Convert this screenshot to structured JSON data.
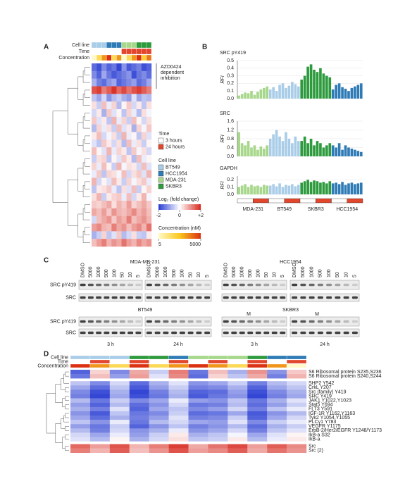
{
  "panel_a": {
    "label": "A",
    "strip_labels": [
      "Cell line",
      "Time",
      "Concentration"
    ],
    "columns": {
      "cell_line": [
        "BT549",
        "BT549",
        "BT549",
        "HCC1954",
        "HCC1954",
        "HCC1954",
        "MDA-231",
        "MDA-231",
        "MDA-231",
        "SKBR3",
        "SKBR3",
        "SKBR3"
      ],
      "time": [
        "3 hours",
        "3 hours",
        "3 hours",
        "3 hours",
        "3 hours",
        "3 hours",
        "24 hours",
        "24 hours",
        "24 hours",
        "24 hours",
        "24 hours",
        "24 hours"
      ],
      "concentration": [
        5,
        50,
        500,
        5000,
        50,
        500,
        5,
        50,
        500,
        5000,
        100,
        1000
      ]
    },
    "annotation": [
      "AZD0424",
      "dependent",
      "inhibition"
    ],
    "time_legend": {
      "title": "Time",
      "entries": [
        {
          "name": "3 hours",
          "color": "#ffffff"
        },
        {
          "name": "24 hours",
          "color": "#e2462c"
        }
      ]
    },
    "cell_line_legend": {
      "title": "Cell line",
      "entries": [
        {
          "name": "BT549",
          "color": "#a9cde8"
        },
        {
          "name": "HCC1954",
          "color": "#2e7bb6"
        },
        {
          "name": "MDA-231",
          "color": "#a6d78a"
        },
        {
          "name": "SKBR3",
          "color": "#2e9a3e"
        }
      ]
    },
    "fold_legend": {
      "title": "Log₂ (fold change)",
      "range": [
        -2,
        2
      ],
      "ticks": [
        -2,
        0,
        {
          "value": 2,
          "label": "+2"
        }
      ]
    },
    "conc_legend": {
      "title": "Concentration (nM)",
      "range": [
        5,
        5000
      ],
      "log": true,
      "ticks": [
        5,
        5000
      ]
    },
    "heatmap": [
      [
        -1.5,
        -1.8,
        -1.2,
        -1.6,
        -1.4,
        -1.9,
        -1.1,
        -1.7,
        -1.5,
        -1.3,
        -1.8,
        -1.6
      ],
      [
        -1.2,
        -1.6,
        -0.9,
        -1.4,
        -1.7,
        -1.5,
        -1.3,
        -1.1,
        -1.8,
        -1.4,
        -1.2,
        -1.5
      ],
      [
        -0.8,
        -1.3,
        -1.5,
        -1.1,
        -0.9,
        -1.6,
        -1.4,
        -1.2,
        -1.0,
        -1.5,
        -1.3,
        -0.9
      ],
      [
        1.6,
        1.8,
        1.2,
        1.5,
        1.9,
        1.4,
        1.7,
        1.3,
        1.6,
        1.8,
        1.5,
        1.2
      ],
      [
        -0.6,
        -0.9,
        -0.4,
        -1.1,
        -0.7,
        -0.5,
        -0.8,
        -1.0,
        -0.3,
        -0.9,
        -0.6,
        -0.7
      ],
      [
        0.3,
        -0.5,
        0.6,
        -0.2,
        0.4,
        -0.7,
        0.1,
        0.5,
        -0.4,
        0.2,
        -0.6,
        0.3
      ],
      [
        -0.4,
        0.2,
        -0.8,
        0.5,
        -0.3,
        0.1,
        -0.6,
        0.4,
        -0.2,
        -0.7,
        0.3,
        -0.1
      ],
      [
        0.5,
        -0.3,
        0.2,
        -0.6,
        0.7,
        -0.2,
        0.4,
        -0.5,
        0.6,
        0.1,
        -0.4,
        0.3
      ],
      [
        -0.7,
        0.4,
        -0.2,
        0.3,
        -0.5,
        0.6,
        -0.3,
        0.2,
        -0.8,
        0.4,
        -0.1,
        0.5
      ],
      [
        0.2,
        0.6,
        -0.4,
        -0.1,
        0.3,
        -0.5,
        0.7,
        -0.2,
        0.1,
        -0.6,
        0.4,
        -0.3
      ],
      [
        -0.3,
        -0.6,
        0.5,
        0.2,
        -0.4,
        0.3,
        -0.7,
        0.6,
        -0.2,
        0.3,
        -0.5,
        0.1
      ],
      [
        0.6,
        0.1,
        -0.3,
        0.7,
        -0.2,
        0.4,
        0.2,
        -0.6,
        0.5,
        -0.1,
        0.3,
        -0.4
      ],
      [
        -0.5,
        0.3,
        0.4,
        -0.6,
        0.1,
        -0.3,
        0.5,
        0.2,
        -0.7,
        0.6,
        -0.2,
        0.1
      ],
      [
        0.4,
        -0.2,
        0.6,
        0.1,
        -0.5,
        0.7,
        -0.1,
        0.3,
        0.2,
        -0.4,
        0.6,
        -0.3
      ],
      [
        -0.2,
        0.5,
        -0.6,
        0.4,
        0.3,
        -0.1,
        0.6,
        -0.4,
        0.3,
        0.5,
        -0.3,
        0.7
      ],
      [
        0.7,
        -0.4,
        0.1,
        -0.3,
        0.6,
        0.2,
        -0.5,
        0.4,
        -0.1,
        0.3,
        0.5,
        -0.2
      ],
      [
        -0.6,
        0.2,
        0.3,
        0.5,
        -0.2,
        -0.6,
        0.3,
        -0.3,
        0.6,
        -0.5,
        0.1,
        0.4
      ],
      [
        0.3,
        0.7,
        -0.5,
        0.2,
        0.4,
        0.5,
        -0.2,
        0.6,
        -0.4,
        0.2,
        0.7,
        -0.1
      ],
      [
        0.5,
        0.4,
        0.6,
        0.8,
        0.3,
        0.7,
        0.5,
        0.9,
        0.4,
        0.6,
        0.8,
        0.5
      ],
      [
        0.8,
        0.6,
        0.9,
        0.5,
        1.0,
        0.7,
        0.6,
        0.8,
        1.1,
        0.7,
        0.9,
        0.6
      ],
      [
        -0.4,
        0.6,
        0.8,
        1.0,
        0.5,
        0.9,
        0.7,
        1.2,
        0.6,
        0.8,
        1.0,
        0.7
      ],
      [
        0.9,
        1.1,
        0.7,
        0.6,
        1.2,
        0.8,
        1.0,
        0.6,
        0.9,
        1.1,
        0.7,
        1.3
      ],
      [
        -0.8,
        -0.5,
        0.4,
        -0.6,
        -0.3,
        0.5,
        -0.7,
        -0.4,
        0.3,
        -0.5,
        -0.6,
        0.2
      ],
      [
        0.6,
        0.9,
        1.2,
        0.7,
        1.0,
        0.8,
        1.3,
        0.9,
        0.7,
        1.1,
        0.8,
        1.0
      ]
    ]
  },
  "panel_b": {
    "label": "B",
    "groups": [
      "MDA-231",
      "BT549",
      "SKBR3",
      "HCC1954"
    ],
    "group_colors": [
      "#a6d78a",
      "#a9cde8",
      "#2e9a3e",
      "#2e7bb6"
    ],
    "charts": [
      {
        "type": "bar",
        "title": "SRC pY419",
        "ylabel": "RFI",
        "ylim": [
          0,
          0.5
        ],
        "yticks": [
          {
            "value": 0,
            "label": "0.0"
          },
          0.1,
          0.2,
          0.3,
          0.4,
          0.5
        ],
        "values": [
          [
            0.04,
            0.06,
            0.08,
            0.07,
            0.1,
            0.05,
            0.09,
            0.12,
            0.14,
            0.16
          ],
          [
            0.12,
            0.15,
            0.1,
            0.18,
            0.2,
            0.14,
            0.17,
            0.22,
            0.19,
            0.16
          ],
          [
            0.25,
            0.3,
            0.42,
            0.45,
            0.38,
            0.35,
            0.4,
            0.33,
            0.3,
            0.28
          ],
          [
            0.12,
            0.18,
            0.2,
            0.15,
            0.13,
            0.1,
            0.14,
            0.16,
            0.18,
            0.2
          ]
        ]
      },
      {
        "type": "bar",
        "title": "SRC",
        "ylabel": "RFI",
        "ylim": [
          0,
          1.6
        ],
        "yticks": [
          {
            "value": 0,
            "label": "0.0"
          },
          0.4,
          0.8,
          1.2,
          1.6
        ],
        "values": [
          [
            1.1,
            0.6,
            0.5,
            0.7,
            0.4,
            0.5,
            0.3,
            0.45,
            0.35,
            0.5
          ],
          [
            0.8,
            1.0,
            1.2,
            0.9,
            0.7,
            1.1,
            0.8,
            0.6,
            0.9,
            0.7
          ],
          [
            0.7,
            0.9,
            0.6,
            0.8,
            0.5,
            0.7,
            0.6,
            0.4,
            0.5,
            0.6
          ],
          [
            0.5,
            0.4,
            0.6,
            0.3,
            0.5,
            0.4,
            0.35,
            0.3,
            0.25,
            0.2
          ]
        ]
      },
      {
        "type": "bar",
        "title": "GAPDH",
        "ylabel": "RFI",
        "ylim": [
          0,
          0.25
        ],
        "yticks": [
          {
            "value": 0,
            "label": "0.0"
          },
          0.1,
          0.2
        ],
        "values": [
          [
            0.1,
            0.12,
            0.14,
            0.1,
            0.13,
            0.11,
            0.12,
            0.1,
            0.13,
            0.12
          ],
          [
            0.12,
            0.14,
            0.11,
            0.15,
            0.1,
            0.13,
            0.12,
            0.14,
            0.11,
            0.13
          ],
          [
            0.16,
            0.18,
            0.2,
            0.17,
            0.19,
            0.18,
            0.16,
            0.17,
            0.15,
            0.18
          ],
          [
            0.15,
            0.16,
            0.14,
            0.17,
            0.13,
            0.15,
            0.16,
            0.14,
            0.15,
            0.16
          ]
        ]
      }
    ]
  },
  "panel_c": {
    "label": "C",
    "blots": [
      {
        "title": "MDA-MB-231"
      },
      {
        "title": "HCC1954"
      },
      {
        "title": "BT549"
      },
      {
        "title": "SKBR3"
      }
    ],
    "lanes": [
      "DMSO",
      "5000",
      "1000",
      "500",
      "100",
      "50",
      "10",
      "5"
    ],
    "rows": [
      "SRC pY419",
      "SRC"
    ],
    "times": [
      "3 h",
      "24 h"
    ],
    "marker": "M"
  },
  "panel_d": {
    "label": "D",
    "strip_labels": [
      "Cell line",
      "Time",
      "Concentration"
    ],
    "columns": {
      "cell_line": [
        "BT549",
        "BT549",
        "BT549",
        "SKBR3",
        "SKBR3",
        "HCC1954",
        "MDA-231",
        "MDA-231",
        "MDA-231",
        "SKBR3",
        "HCC1954",
        "HCC1954"
      ],
      "time": [
        "3 hours",
        "24 hours",
        "3 hours",
        "24 hours",
        "3 hours",
        "24 hours",
        "3 hours",
        "24 hours",
        "3 hours",
        "24 hours",
        "3 hours",
        "24 hours"
      ],
      "concentration": [
        5000,
        500,
        50,
        5000,
        50,
        500,
        5000,
        500,
        50,
        5000,
        500,
        5
      ]
    },
    "rows": [
      "S6 Ribosomal protein S235,S236",
      "S6 Ribosomal protein S240,S244",
      "SHP2 Y542",
      "CrkL Y207",
      "Src (family) Y419",
      "SRC Y419",
      "JAK1 Y1022,Y1023",
      "Stat5 Y694",
      "FLT3 Y591",
      "IGF-1R Y1162,Y1163",
      "Tyk2 Y1054,Y1055",
      "PLCγ1 Y783",
      "VEGFR Y1175",
      "ErbB-2/Her2/EGFR Y1248/Y1173",
      "IkB-a S32",
      "IkB-a",
      "Src",
      "Src (2)"
    ],
    "heatmap": [
      [
        -1.6,
        0.4,
        -1.2,
        0.8,
        -0.5,
        1.2,
        -1.4,
        0.6,
        -0.8,
        1.0,
        -1.1,
        0.5
      ],
      [
        -1.4,
        0.6,
        -1.0,
        0.9,
        -0.3,
        1.1,
        -1.5,
        0.4,
        -0.6,
        0.8,
        -1.3,
        0.7
      ],
      [
        -0.6,
        -1.2,
        -0.4,
        -1.5,
        -0.8,
        -0.3,
        -1.1,
        -0.9,
        -0.5,
        -1.3,
        -0.7,
        -0.4
      ],
      [
        -0.9,
        -1.5,
        -0.6,
        -1.7,
        -1.0,
        -0.5,
        -1.3,
        -1.2,
        -0.8,
        -1.6,
        -0.9,
        -0.6
      ],
      [
        -1.2,
        -1.8,
        -0.8,
        -1.9,
        -1.3,
        -0.7,
        -1.6,
        -1.5,
        -1.0,
        -1.8,
        -1.2,
        -0.8
      ],
      [
        -1.3,
        -1.9,
        -0.9,
        -1.8,
        -1.4,
        -0.8,
        -1.7,
        -1.4,
        -1.1,
        -1.9,
        -1.3,
        -0.9
      ],
      [
        -0.7,
        -1.4,
        -0.5,
        -1.2,
        -0.9,
        -0.2,
        -1.0,
        -1.1,
        -0.6,
        -1.4,
        -0.8,
        -0.3
      ],
      [
        -1.0,
        -1.6,
        -0.7,
        -1.5,
        -1.1,
        -0.4,
        -1.4,
        -1.3,
        -0.7,
        -1.5,
        -1.0,
        -0.5
      ],
      [
        -0.8,
        -1.3,
        -0.3,
        -1.6,
        -0.9,
        -0.6,
        -1.2,
        -1.0,
        -0.4,
        -1.3,
        -0.6,
        -0.2
      ],
      [
        -1.1,
        -1.7,
        -0.6,
        -1.4,
        -1.2,
        -0.5,
        -1.5,
        -1.4,
        -0.9,
        -1.7,
        -1.1,
        -0.7
      ],
      [
        -0.9,
        -1.5,
        -0.8,
        -1.3,
        -1.0,
        -0.3,
        -1.3,
        -1.2,
        -0.5,
        -1.6,
        -0.9,
        -0.4
      ],
      [
        -0.6,
        -1.1,
        -0.2,
        -1.4,
        -0.7,
        -0.4,
        -0.9,
        -1.0,
        -0.3,
        -1.2,
        -0.5,
        -0.2
      ],
      [
        -1.0,
        -1.4,
        -0.5,
        -1.6,
        -1.1,
        -0.6,
        -1.3,
        -1.1,
        -0.7,
        -1.5,
        -0.8,
        -0.5
      ],
      [
        -0.7,
        -1.3,
        -0.4,
        -1.1,
        -0.8,
        -0.2,
        -1.1,
        -0.9,
        -0.4,
        -1.3,
        -0.6,
        -0.3
      ],
      [
        -0.4,
        -0.9,
        -0.2,
        -1.0,
        -0.5,
        0.2,
        -0.8,
        -0.6,
        -0.1,
        -0.9,
        -0.3,
        0.1
      ],
      [
        -0.3,
        -0.7,
        0.1,
        -0.8,
        -0.4,
        0.3,
        -0.6,
        -0.5,
        0.2,
        -0.7,
        -0.2,
        0.2
      ],
      [
        1.4,
        0.9,
        1.6,
        0.7,
        1.2,
        1.8,
        0.8,
        1.3,
        1.7,
        0.9,
        1.5,
        1.1
      ],
      [
        1.2,
        0.7,
        1.5,
        0.6,
        1.0,
        1.6,
        0.9,
        1.1,
        1.5,
        0.8,
        1.3,
        1.0
      ]
    ]
  }
}
